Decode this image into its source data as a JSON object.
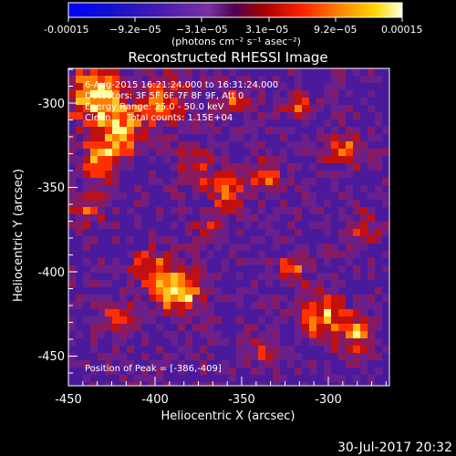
{
  "colorbar": {
    "tick_labels": [
      "-0.00015",
      "−9.2e−05",
      "−3.1e−05",
      "3.1e−05",
      "9.2e−05",
      "0.00015"
    ],
    "unit_label": "(photons cm⁻² s⁻¹ asec⁻²)",
    "range": [
      -0.00015,
      0.00015
    ]
  },
  "image": {
    "title": "Reconstructed RHESSI Image",
    "time_range": "6-Aug-2015 16:21:24.000 to 16:31:24.000",
    "detectors": "Detectors: 3F 5F 6F 7F 8F 9F, Att 0",
    "energy_range": "Energy Range: 25.0 - 50.0 keV",
    "algorithm": "Clean",
    "total_counts": "Total counts: 1.15E+04",
    "peak_position": "Position of Peak = [-386,-409]"
  },
  "axes": {
    "xlabel": "Heliocentric X (arcsec)",
    "ylabel": "Heliocentric Y (arcsec)",
    "x_ticks": [
      "-450",
      "-400",
      "-350",
      "-300"
    ],
    "y_ticks": [
      "-300",
      "-350",
      "-400",
      "-450"
    ],
    "xlim": [
      -450,
      -265
    ],
    "ylim": [
      -470,
      -282
    ]
  },
  "footer": {
    "timestamp": "30-Jul-2017 20:32"
  }
}
